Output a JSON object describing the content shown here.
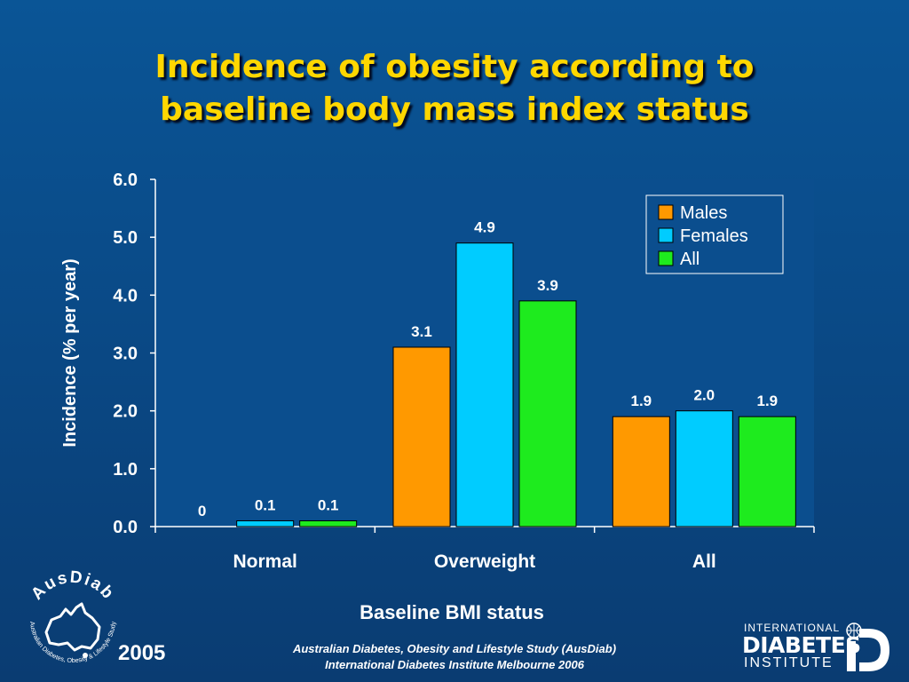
{
  "title_line1": "Incidence of obesity according to",
  "title_line2": "baseline body mass index status",
  "footer": {
    "line1": "Australian Diabetes, Obesity and Lifestyle Study (AusDiab)",
    "line2": "International Diabetes Institute Melbourne 2006",
    "year": "2005"
  },
  "logos": {
    "ausdiab_name": "AusDiab",
    "ausdiab_ring": "Australian Diabetes, Obesity & Lifestyle Study",
    "idi_line1": "INTERNATIONAL",
    "idi_line2": "DIABETES",
    "idi_line3": "INSTITUTE"
  },
  "colors": {
    "plot_bg": "#0b4e8e",
    "Males": "#ff9900",
    "Females": "#00ccff",
    "All": "#1eeb1e",
    "title": "#ffd700"
  },
  "chart_data": {
    "type": "bar",
    "title": "Incidence of obesity according to baseline body mass index status",
    "xlabel": "Baseline BMI status",
    "ylabel": "Incidence (% per year)",
    "categories": [
      "Normal",
      "Overweight",
      "All"
    ],
    "series": [
      {
        "name": "Males",
        "values": [
          0,
          3.1,
          1.9
        ],
        "labels": [
          "0",
          "3.1",
          "1.9"
        ]
      },
      {
        "name": "Females",
        "values": [
          0.1,
          4.9,
          2.0
        ],
        "labels": [
          "0.1",
          "4.9",
          "2.0"
        ]
      },
      {
        "name": "All",
        "values": [
          0.1,
          3.9,
          1.9
        ],
        "labels": [
          "0.1",
          "3.9",
          "1.9"
        ]
      }
    ],
    "ylim": [
      0,
      6
    ],
    "yticks": [
      "0.0",
      "1.0",
      "2.0",
      "3.0",
      "4.0",
      "5.0",
      "6.0"
    ],
    "grid": false,
    "legend": "top-right"
  }
}
